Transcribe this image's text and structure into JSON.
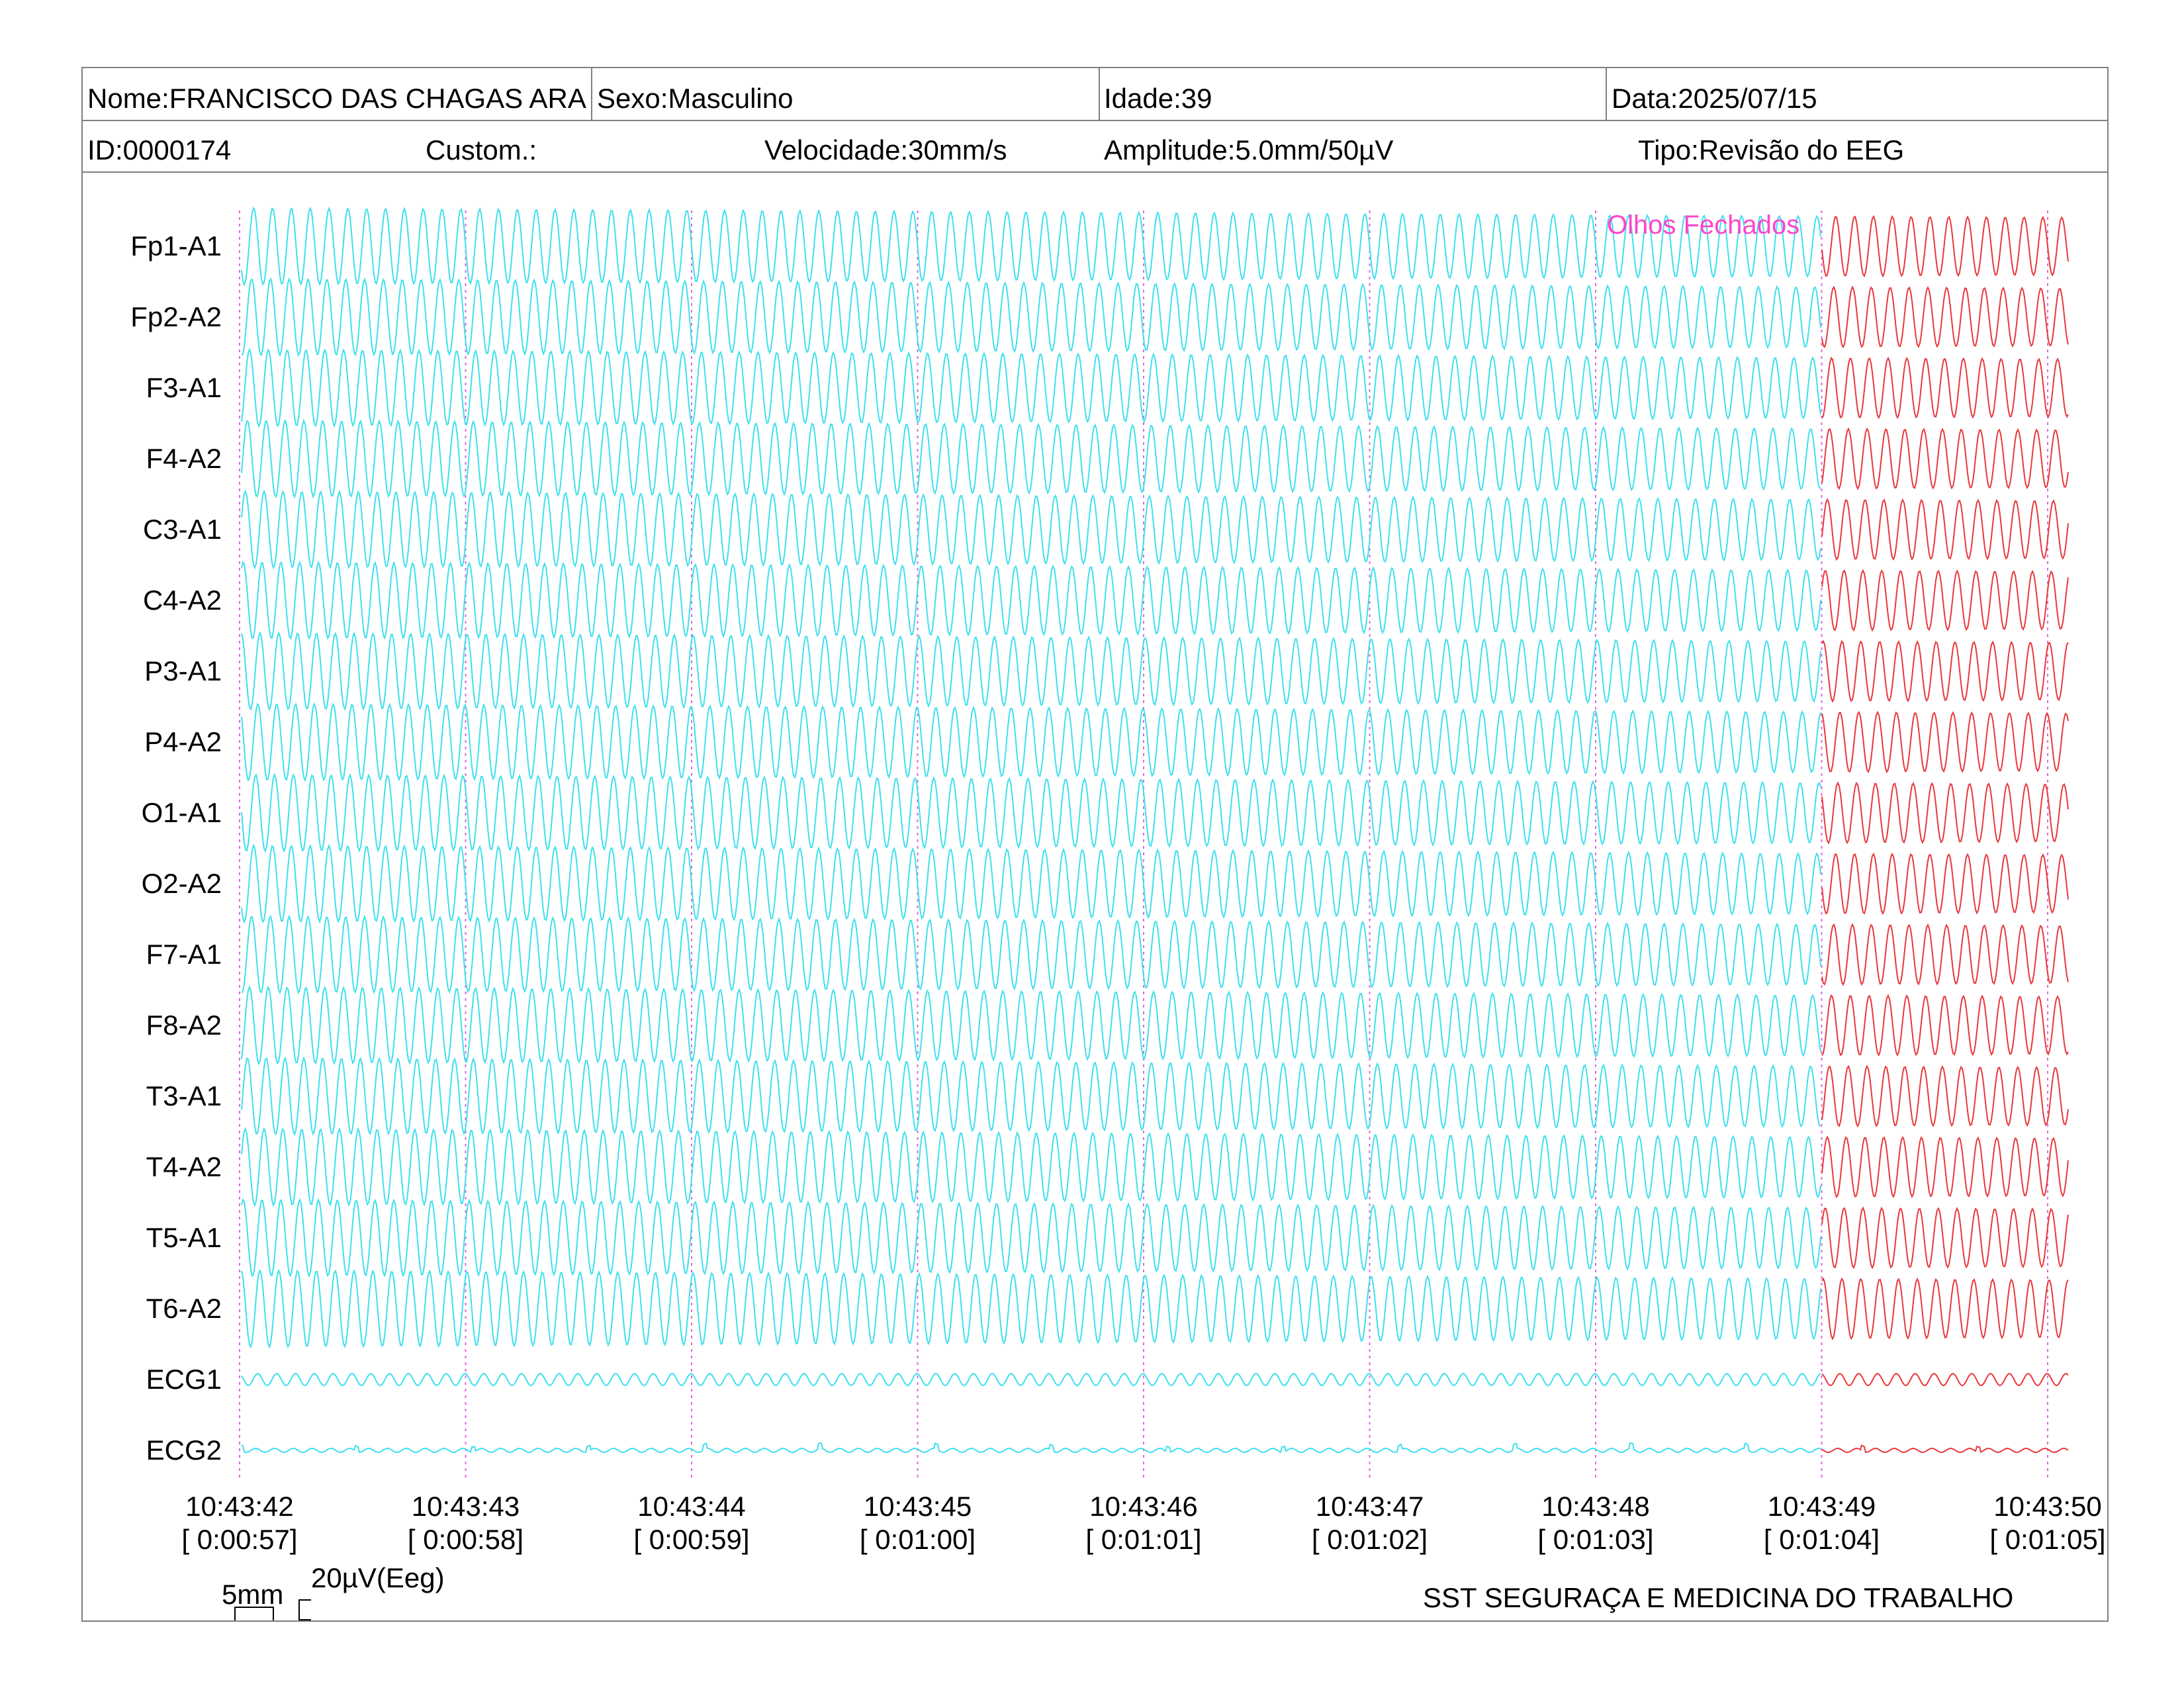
{
  "header": {
    "nome": "Nome:FRANCISCO DAS CHAGAS ARA",
    "sexo": "Sexo:Masculino",
    "idade": "Idade:39",
    "data": "Data:2025/07/15",
    "id": "ID:0000174",
    "custom": "Custom.:",
    "velocidade": "Velocidade:30mm/s",
    "amplitude": "Amplitude:5.0mm/50µV",
    "tipo": "Tipo:Revisão do EEG"
  },
  "annotation": "Olhos Fechados",
  "scale": {
    "time": "5mm",
    "amplitude": "20µV(Eeg)"
  },
  "footer": "SST SEGURAÇA E MEDICINA DO TRABALHO",
  "colors": {
    "trace": "#3ee0ee",
    "trace_closed": "#e8383c",
    "marker": "#dd66dd",
    "annotation": "#ff44cc",
    "border": "#808080"
  },
  "chart_data": {
    "type": "line",
    "title": "",
    "xlabel": "",
    "ylabel": "",
    "channels": [
      "Fp1-A1",
      "Fp2-A2",
      "F3-A1",
      "F4-A2",
      "C3-A1",
      "C4-A2",
      "P3-A1",
      "P4-A2",
      "O1-A1",
      "O2-A2",
      "F7-A1",
      "F8-A2",
      "T3-A1",
      "T4-A2",
      "T5-A1",
      "T6-A2",
      "ECG1",
      "ECG2"
    ],
    "time_ticks": [
      {
        "clock": "10:43:42",
        "elapsed": "[ 0:00:57]"
      },
      {
        "clock": "10:43:43",
        "elapsed": "[ 0:00:58]"
      },
      {
        "clock": "10:43:44",
        "elapsed": "[ 0:00:59]"
      },
      {
        "clock": "10:43:45",
        "elapsed": "[ 0:01:00]"
      },
      {
        "clock": "10:43:46",
        "elapsed": "[ 0:01:01]"
      },
      {
        "clock": "10:43:47",
        "elapsed": "[ 0:01:02]"
      },
      {
        "clock": "10:43:48",
        "elapsed": "[ 0:01:03]"
      },
      {
        "clock": "10:43:49",
        "elapsed": "[ 0:01:04]"
      },
      {
        "clock": "10:43:50",
        "elapsed": "[ 0:01:05]"
      }
    ],
    "eyes_closed_start": "10:43:49",
    "dominant_frequency_hz": 12
  }
}
